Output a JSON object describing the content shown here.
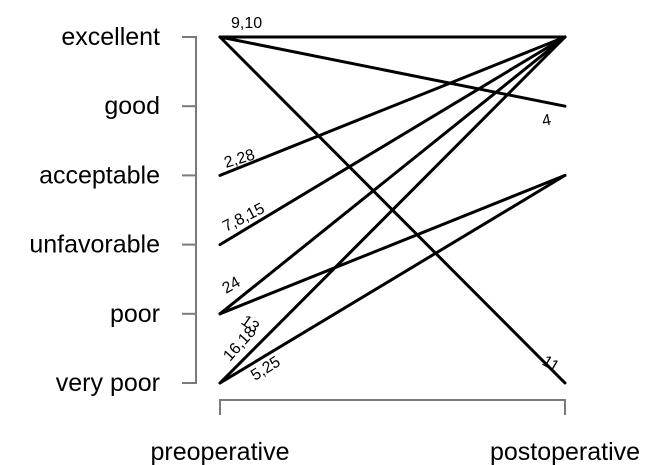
{
  "chart_data": {
    "type": "line",
    "subtype": "slopegraph",
    "x": [
      "preoperative",
      "postoperative"
    ],
    "categories": [
      "excellent",
      "good",
      "acceptable",
      "unfavorable",
      "poor",
      "very poor"
    ],
    "grid": false,
    "connections": [
      {
        "label": "9,10",
        "from": "excellent",
        "to": "excellent"
      },
      {
        "label": "4",
        "from": "excellent",
        "to": "good"
      },
      {
        "label": "11",
        "from": "excellent",
        "to": "very poor"
      },
      {
        "label": "2,28",
        "from": "acceptable",
        "to": "excellent"
      },
      {
        "label": "7,8,15",
        "from": "unfavorable",
        "to": "excellent"
      },
      {
        "label": "24",
        "from": "poor",
        "to": "acceptable"
      },
      {
        "label": "13",
        "from": "poor",
        "to": "excellent"
      },
      {
        "label": "16,18",
        "from": "very poor",
        "to": "excellent"
      },
      {
        "label": "5,25",
        "from": "very poor",
        "to": "acceptable"
      }
    ]
  }
}
